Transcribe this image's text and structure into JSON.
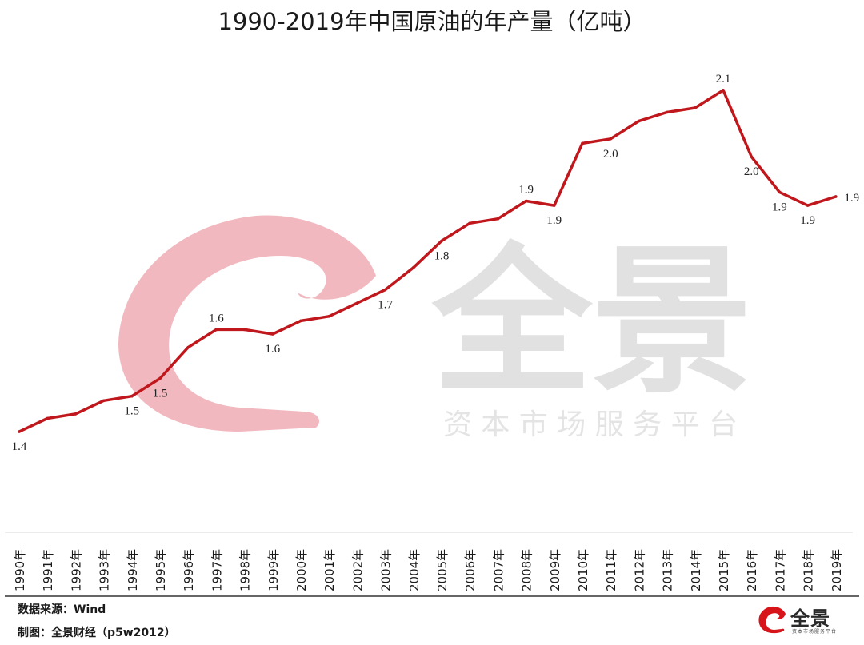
{
  "title": "1990-2019年中国原油的年产量（亿吨）",
  "watermark": {
    "name": "全景",
    "subtitle": "资 本 市 场 服 务 平 台",
    "logo_color": "#f2b8bf"
  },
  "footer": {
    "source": "数据来源：Wind",
    "credit": "制图：全景财经（p5w2012）",
    "brand_name": "全景",
    "brand_sub": "资本市场服务平台",
    "brand_color": "#d7141a"
  },
  "chart_data": {
    "type": "line",
    "title": "1990-2019年中国原油的年产量（亿吨）",
    "xlabel": "",
    "ylabel": "",
    "categories": [
      "1990年",
      "1991年",
      "1992年",
      "1993年",
      "1994年",
      "1995年",
      "1996年",
      "1997年",
      "1998年",
      "1999年",
      "2000年",
      "2001年",
      "2002年",
      "2003年",
      "2004年",
      "2005年",
      "2006年",
      "2007年",
      "2008年",
      "2009年",
      "2010年",
      "2011年",
      "2012年",
      "2013年",
      "2014年",
      "2015年",
      "2016年",
      "2017年",
      "2018年",
      "2019年"
    ],
    "series": [
      {
        "values": [
          1.38,
          1.41,
          1.42,
          1.45,
          1.46,
          1.5,
          1.57,
          1.61,
          1.61,
          1.6,
          1.63,
          1.64,
          1.67,
          1.7,
          1.75,
          1.81,
          1.85,
          1.86,
          1.9,
          1.89,
          2.03,
          2.04,
          2.08,
          2.1,
          2.11,
          2.15,
          2.0,
          1.92,
          1.89,
          1.91
        ],
        "labels": [
          "1.4",
          "",
          "",
          "",
          "1.5",
          "1.5",
          "",
          "1.6",
          "",
          "1.6",
          "",
          "",
          "",
          "1.7",
          "",
          "1.8",
          "",
          "",
          "1.9",
          "1.9",
          "",
          "2.0",
          "",
          "",
          "",
          "2.1",
          "2.0",
          "1.9",
          "1.9",
          "1.9"
        ],
        "color": "#c0171c"
      }
    ],
    "ylim": [
      1.2,
      2.2
    ],
    "grid": false,
    "legend": "none"
  }
}
